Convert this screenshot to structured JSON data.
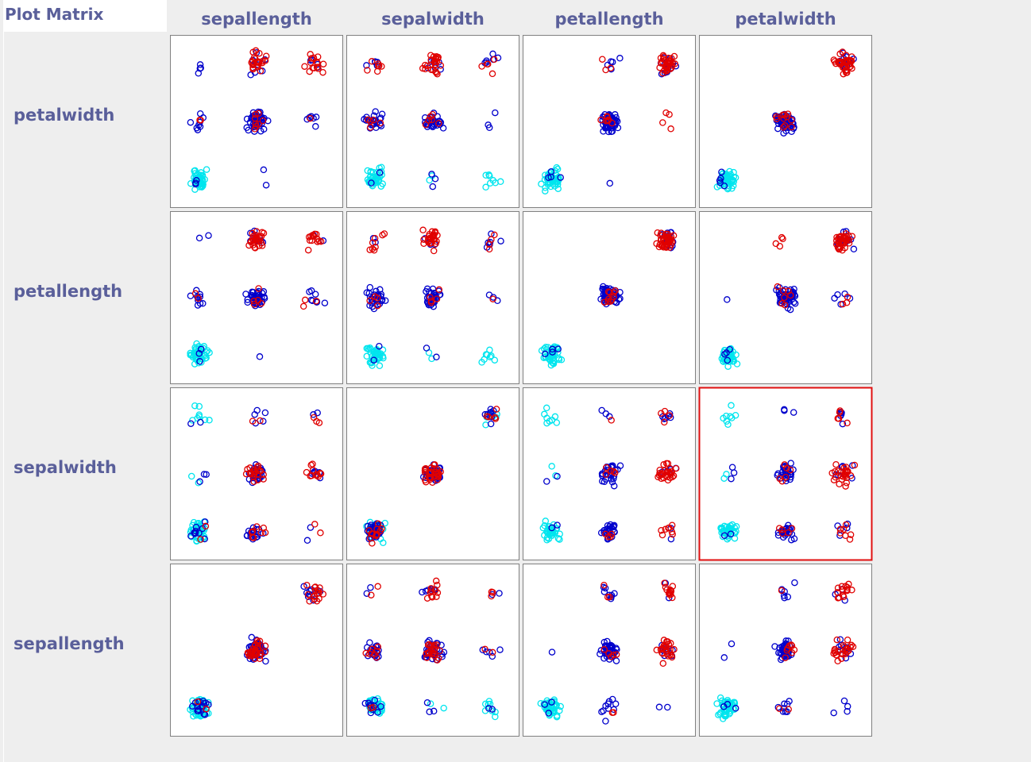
{
  "window": {
    "title": "Plot Matrix"
  },
  "chart_data": {
    "type": "scatter",
    "attributes": [
      "sepallength",
      "sepalwidth",
      "petallength",
      "petalwidth"
    ],
    "columns": [
      "sepallength",
      "sepalwidth",
      "petallength",
      "petalwidth"
    ],
    "rows": [
      "petalwidth",
      "petallength",
      "sepalwidth",
      "sepallength"
    ],
    "selected_cell": {
      "row": "sepalwidth",
      "column": "petalwidth"
    },
    "jitter": true,
    "marker": "open-circle",
    "color_attribute_levels": 3,
    "colors": [
      "#00e5ee",
      "#0000cc",
      "#e00000"
    ],
    "discretized_levels": 3,
    "groups": [
      {
        "color": "#00e5ee",
        "points": [
          [
            0,
            0,
            0,
            0
          ],
          [
            0,
            0,
            0,
            0
          ],
          [
            0,
            0,
            0,
            0
          ],
          [
            0,
            0,
            0,
            0
          ],
          [
            0,
            0,
            0,
            0
          ],
          [
            0,
            0,
            0,
            0
          ],
          [
            0,
            0,
            0,
            0
          ],
          [
            0,
            0,
            0,
            0
          ],
          [
            0,
            0,
            0,
            0
          ],
          [
            0,
            0,
            0,
            0
          ],
          [
            0,
            0,
            0,
            0
          ],
          [
            0,
            0,
            0,
            0
          ],
          [
            0,
            0,
            0,
            0
          ],
          [
            0,
            0,
            0,
            0
          ],
          [
            0,
            0,
            0,
            0
          ],
          [
            0,
            0,
            0,
            0
          ],
          [
            0,
            0,
            0,
            0
          ],
          [
            0,
            0,
            0,
            0
          ],
          [
            0,
            0,
            0,
            0
          ],
          [
            0,
            0,
            0,
            0
          ],
          [
            0,
            0,
            0,
            0
          ],
          [
            0,
            0,
            0,
            0
          ],
          [
            0,
            0,
            0,
            0
          ],
          [
            0,
            0,
            0,
            0
          ],
          [
            0,
            0,
            0,
            0
          ],
          [
            0,
            0,
            0,
            0
          ],
          [
            0,
            0,
            0,
            0
          ],
          [
            0,
            0,
            0,
            0
          ],
          [
            0,
            0,
            0,
            0
          ],
          [
            0,
            0,
            0,
            0
          ],
          [
            0,
            0,
            0,
            0
          ],
          [
            0,
            0,
            0,
            0
          ],
          [
            0,
            0,
            0,
            0
          ],
          [
            0,
            0,
            0,
            0
          ],
          [
            0,
            0,
            0,
            0
          ],
          [
            0,
            0,
            0,
            0
          ],
          [
            0,
            0,
            0,
            0
          ],
          [
            0,
            0,
            0,
            0
          ],
          [
            0,
            2,
            0,
            0
          ],
          [
            0,
            2,
            0,
            0
          ],
          [
            0,
            2,
            0,
            0
          ],
          [
            0,
            2,
            0,
            0
          ],
          [
            0,
            2,
            0,
            0
          ],
          [
            0,
            2,
            0,
            0
          ],
          [
            0,
            2,
            0,
            0
          ],
          [
            0,
            2,
            0,
            0
          ],
          [
            0,
            1,
            0,
            0
          ],
          [
            0,
            1,
            0,
            0
          ]
        ]
      },
      {
        "color": "#0000cc",
        "points": [
          [
            1,
            1,
            1,
            1
          ],
          [
            1,
            1,
            1,
            1
          ],
          [
            1,
            1,
            1,
            1
          ],
          [
            1,
            1,
            1,
            1
          ],
          [
            1,
            1,
            1,
            1
          ],
          [
            1,
            1,
            1,
            1
          ],
          [
            1,
            1,
            1,
            1
          ],
          [
            1,
            1,
            1,
            1
          ],
          [
            1,
            1,
            1,
            1
          ],
          [
            1,
            1,
            1,
            1
          ],
          [
            1,
            1,
            1,
            1
          ],
          [
            1,
            1,
            1,
            1
          ],
          [
            1,
            1,
            1,
            1
          ],
          [
            1,
            1,
            1,
            1
          ],
          [
            1,
            1,
            1,
            1
          ],
          [
            1,
            1,
            1,
            1
          ],
          [
            1,
            1,
            1,
            1
          ],
          [
            1,
            1,
            1,
            1
          ],
          [
            1,
            1,
            1,
            1
          ],
          [
            1,
            1,
            1,
            1
          ],
          [
            1,
            1,
            1,
            1
          ],
          [
            1,
            1,
            1,
            1
          ],
          [
            1,
            0,
            1,
            1
          ],
          [
            1,
            0,
            1,
            1
          ],
          [
            1,
            0,
            1,
            1
          ],
          [
            1,
            0,
            1,
            1
          ],
          [
            1,
            0,
            1,
            1
          ],
          [
            1,
            0,
            1,
            1
          ],
          [
            1,
            0,
            1,
            1
          ],
          [
            1,
            0,
            1,
            1
          ],
          [
            1,
            0,
            1,
            1
          ],
          [
            1,
            0,
            1,
            1
          ],
          [
            1,
            0,
            1,
            1
          ],
          [
            1,
            0,
            1,
            1
          ],
          [
            1,
            0,
            1,
            1
          ],
          [
            1,
            0,
            1,
            1
          ],
          [
            1,
            0,
            1,
            1
          ],
          [
            1,
            0,
            1,
            1
          ],
          [
            0,
            0,
            1,
            1
          ],
          [
            0,
            0,
            1,
            1
          ],
          [
            0,
            0,
            1,
            1
          ],
          [
            0,
            0,
            1,
            1
          ],
          [
            0,
            0,
            1,
            1
          ],
          [
            0,
            0,
            1,
            1
          ],
          [
            0,
            1,
            1,
            1
          ],
          [
            0,
            1,
            1,
            1
          ],
          [
            0,
            0,
            0,
            0
          ],
          [
            0,
            0,
            0,
            0
          ],
          [
            0,
            1,
            0,
            0
          ],
          [
            1,
            2,
            2,
            2
          ],
          [
            1,
            2,
            2,
            2
          ],
          [
            2,
            1,
            1,
            2
          ],
          [
            2,
            1,
            1,
            2
          ],
          [
            0,
            0,
            1,
            2
          ],
          [
            0,
            0,
            1,
            2
          ],
          [
            0,
            2,
            2,
            2
          ],
          [
            0,
            2,
            2,
            2
          ],
          [
            1,
            1,
            2,
            2
          ],
          [
            1,
            1,
            2,
            2
          ],
          [
            1,
            1,
            2,
            2
          ],
          [
            1,
            1,
            2,
            2
          ],
          [
            1,
            0,
            2,
            2
          ],
          [
            1,
            0,
            2,
            2
          ],
          [
            1,
            0,
            1,
            2
          ],
          [
            1,
            2,
            1,
            1
          ],
          [
            1,
            2,
            1,
            1
          ],
          [
            1,
            2,
            1,
            1
          ],
          [
            1,
            1,
            1,
            0
          ],
          [
            1,
            1,
            0,
            0
          ],
          [
            2,
            2,
            2,
            2
          ],
          [
            2,
            2,
            2,
            2
          ],
          [
            2,
            1,
            1,
            1
          ],
          [
            2,
            1,
            1,
            1
          ],
          [
            2,
            1,
            1,
            1
          ],
          [
            2,
            1,
            1,
            1
          ],
          [
            2,
            0,
            1,
            1
          ],
          [
            2,
            0,
            1,
            1
          ]
        ]
      },
      {
        "color": "#e00000",
        "points": [
          [
            1,
            1,
            2,
            2
          ],
          [
            1,
            1,
            2,
            2
          ],
          [
            1,
            1,
            2,
            2
          ],
          [
            1,
            1,
            2,
            2
          ],
          [
            1,
            1,
            2,
            2
          ],
          [
            1,
            1,
            2,
            2
          ],
          [
            1,
            1,
            2,
            2
          ],
          [
            1,
            1,
            2,
            2
          ],
          [
            1,
            1,
            2,
            2
          ],
          [
            1,
            1,
            2,
            2
          ],
          [
            1,
            1,
            2,
            2
          ],
          [
            1,
            1,
            2,
            2
          ],
          [
            1,
            1,
            2,
            2
          ],
          [
            1,
            1,
            2,
            2
          ],
          [
            1,
            1,
            2,
            2
          ],
          [
            1,
            1,
            2,
            2
          ],
          [
            2,
            1,
            2,
            2
          ],
          [
            2,
            1,
            2,
            2
          ],
          [
            2,
            1,
            2,
            2
          ],
          [
            2,
            1,
            2,
            2
          ],
          [
            2,
            1,
            2,
            2
          ],
          [
            2,
            1,
            2,
            2
          ],
          [
            2,
            1,
            2,
            2
          ],
          [
            2,
            1,
            2,
            2
          ],
          [
            2,
            2,
            2,
            2
          ],
          [
            2,
            2,
            2,
            2
          ],
          [
            1,
            2,
            2,
            2
          ],
          [
            1,
            2,
            2,
            2
          ],
          [
            1,
            0,
            2,
            2
          ],
          [
            1,
            0,
            2,
            2
          ],
          [
            1,
            0,
            2,
            2
          ],
          [
            1,
            0,
            2,
            2
          ],
          [
            1,
            0,
            2,
            2
          ],
          [
            2,
            1,
            1,
            2
          ],
          [
            2,
            1,
            1,
            2
          ],
          [
            1,
            1,
            1,
            1
          ],
          [
            1,
            1,
            1,
            1
          ],
          [
            1,
            1,
            1,
            1
          ],
          [
            1,
            0,
            1,
            1
          ],
          [
            1,
            0,
            1,
            1
          ],
          [
            0,
            0,
            1,
            1
          ],
          [
            0,
            0,
            1,
            1
          ],
          [
            2,
            0,
            2,
            2
          ],
          [
            2,
            0,
            2,
            2
          ],
          [
            1,
            1,
            2,
            1
          ],
          [
            1,
            1,
            2,
            1
          ],
          [
            1,
            0,
            2,
            1
          ],
          [
            2,
            2,
            1,
            2
          ],
          [
            2,
            1,
            2,
            1
          ]
        ]
      }
    ]
  }
}
